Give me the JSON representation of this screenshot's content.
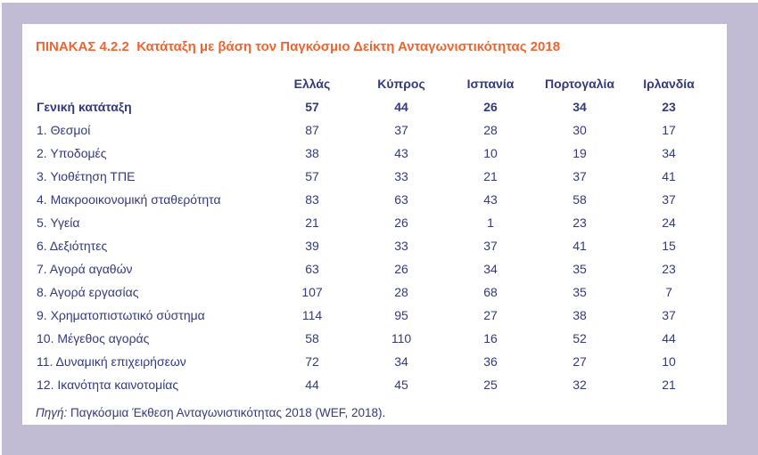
{
  "title": "ΠΙΝΑΚΑΣ 4.2.2  Κατάταξη με βάση τον Παγκόσμιο Δείκτη Ανταγωνιστικότητας 2018",
  "table": {
    "columns": [
      "Ελλάς",
      "Κύπρος",
      "Ισπανία",
      "Πορτογαλία",
      "Ιρλανδία"
    ],
    "rows": [
      {
        "label": "Γενική κατάταξη",
        "bold": true,
        "values": [
          57,
          44,
          26,
          34,
          23
        ]
      },
      {
        "label": "1. Θεσμοί",
        "bold": false,
        "values": [
          87,
          37,
          28,
          30,
          17
        ]
      },
      {
        "label": "2. Υποδομές",
        "bold": false,
        "values": [
          38,
          43,
          10,
          19,
          34
        ]
      },
      {
        "label": "3. Υιοθέτηση ΤΠΕ",
        "bold": false,
        "values": [
          57,
          33,
          21,
          37,
          41
        ]
      },
      {
        "label": "4. Μακροοικονομική σταθερότητα",
        "bold": false,
        "values": [
          83,
          63,
          43,
          58,
          37
        ]
      },
      {
        "label": "5. Υγεία",
        "bold": false,
        "values": [
          21,
          26,
          1,
          23,
          24
        ]
      },
      {
        "label": "6. Δεξιότητες",
        "bold": false,
        "values": [
          39,
          33,
          37,
          41,
          15
        ]
      },
      {
        "label": "7. Αγορά αγαθών",
        "bold": false,
        "values": [
          63,
          26,
          34,
          35,
          23
        ]
      },
      {
        "label": "8. Αγορά εργασίας",
        "bold": false,
        "values": [
          107,
          28,
          68,
          35,
          7
        ]
      },
      {
        "label": "9. Χρηματοπιστωτικό σύστημα",
        "bold": false,
        "values": [
          114,
          95,
          27,
          38,
          37
        ]
      },
      {
        "label": "10. Μέγεθος αγοράς",
        "bold": false,
        "values": [
          58,
          110,
          16,
          52,
          44
        ]
      },
      {
        "label": "11. Δυναμική επιχειρήσεων",
        "bold": false,
        "values": [
          72,
          34,
          36,
          27,
          10
        ]
      },
      {
        "label": "12. Ικανότητα καινοτομίας",
        "bold": false,
        "values": [
          44,
          45,
          25,
          32,
          21
        ]
      }
    ]
  },
  "source": {
    "prefix": "Πηγή:",
    "text": " Παγκόσμια Έκθεση Ανταγωνιστικότητας 2018 (WEF, 2018)."
  },
  "colors": {
    "accent_orange": "#f0642f",
    "text_navy": "#333a7c",
    "frame_lavender": "#c1bcd3",
    "card_white": "#ffffff"
  }
}
